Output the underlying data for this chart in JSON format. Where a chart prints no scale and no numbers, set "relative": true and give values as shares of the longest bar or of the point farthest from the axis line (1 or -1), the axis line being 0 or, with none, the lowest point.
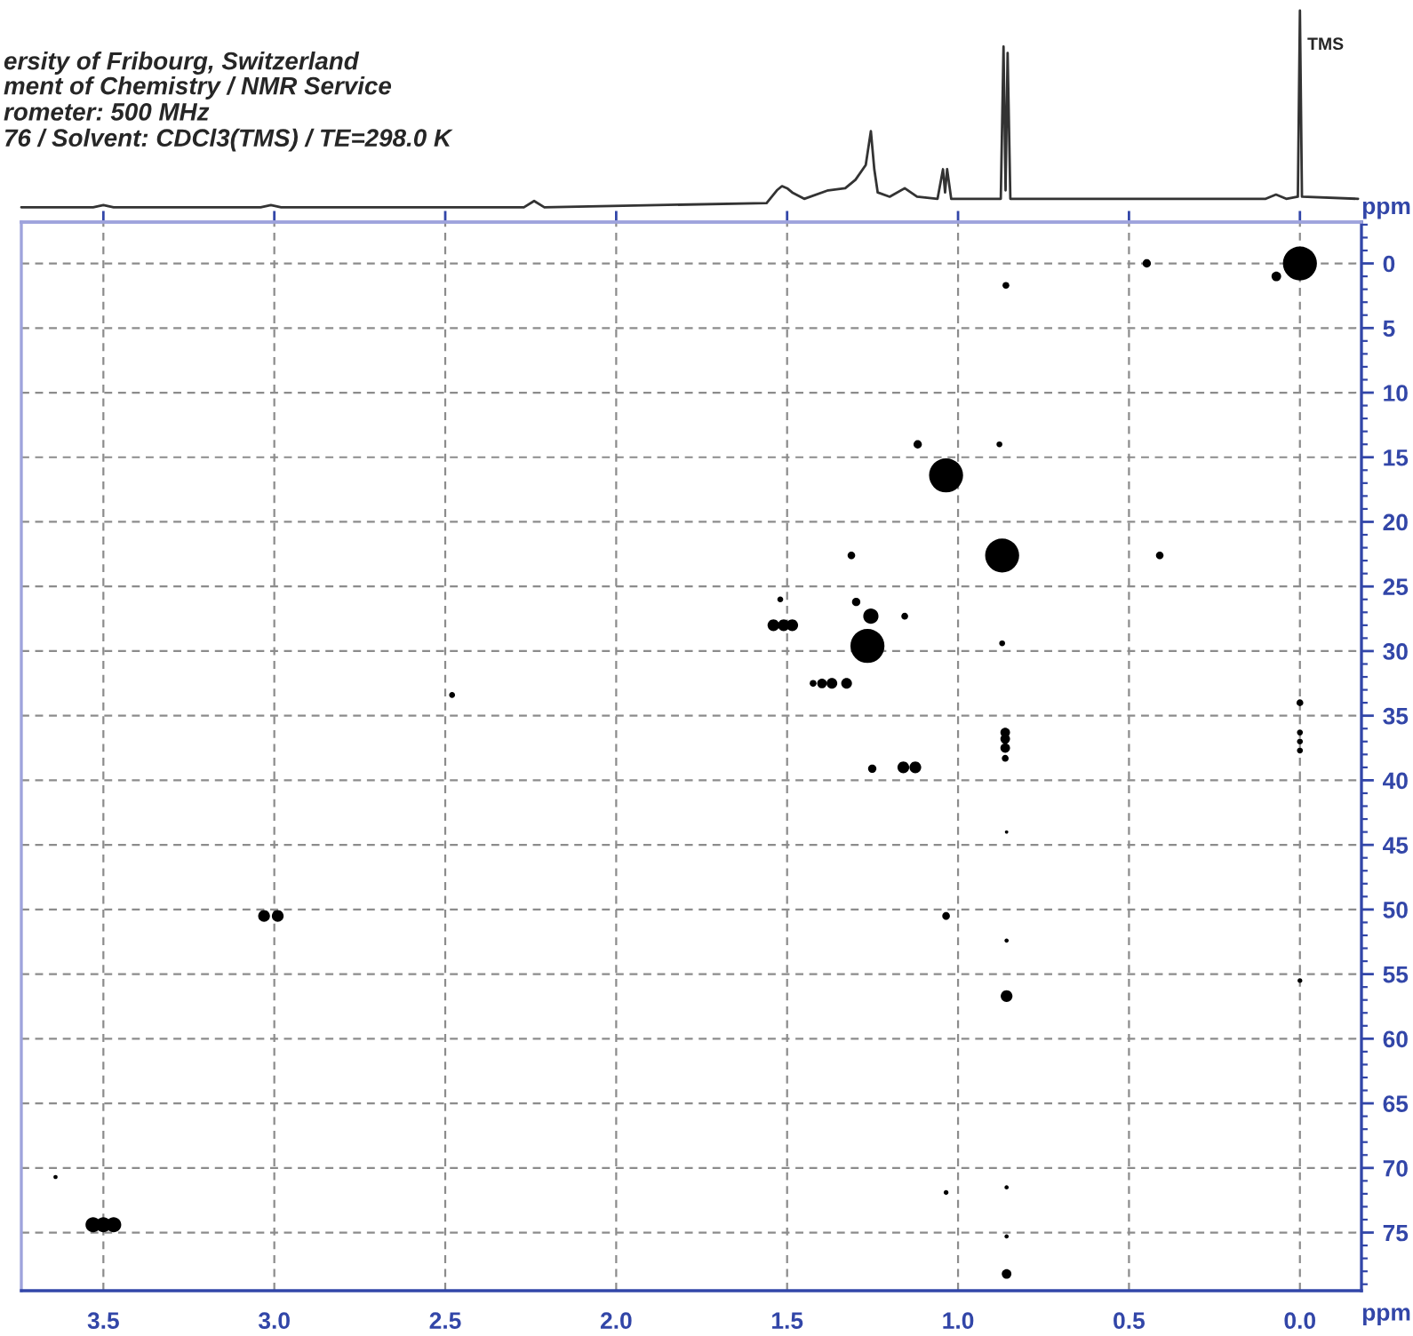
{
  "chart_data": [
    {
      "type": "line",
      "title": "ersity of Fribourg, Switzerland",
      "subtitle": "ment of Chemistry / NMR Service\nrometer: 500 MHz\n76 / Solvent: CDCl3(TMS) / TE=298.0 K",
      "relative": true,
      "xlim": [
        3.74,
        -0.18
      ],
      "xticks": [
        3.5,
        3,
        2.5,
        2,
        1.5,
        1,
        0.5,
        0
      ],
      "tick_labels": false,
      "color": "#333333",
      "x": [
        3.74,
        3.53,
        3.5,
        3.47,
        3.04,
        3.01,
        2.98,
        2.27,
        2.24,
        2.21,
        1.56,
        1.53,
        1.515,
        1.5,
        1.485,
        1.45,
        1.38,
        1.33,
        1.3,
        1.27,
        1.255,
        1.245,
        1.235,
        1.2,
        1.156,
        1.12,
        1.06,
        1.044,
        1.038,
        1.032,
        1.02,
        0.875,
        0.867,
        0.861,
        0.855,
        0.847,
        0.8,
        0.1,
        0.07,
        0.04,
        0.006,
        0.0,
        -0.006,
        -0.17
      ],
      "values": [
        0.07,
        0.07,
        0.08,
        0.07,
        0.07,
        0.08,
        0.07,
        0.07,
        0.1,
        0.07,
        0.09,
        0.15,
        0.17,
        0.16,
        0.14,
        0.11,
        0.15,
        0.16,
        0.2,
        0.27,
        0.43,
        0.25,
        0.14,
        0.12,
        0.16,
        0.12,
        0.11,
        0.25,
        0.14,
        0.25,
        0.11,
        0.11,
        0.83,
        0.15,
        0.8,
        0.11,
        0.11,
        0.11,
        0.13,
        0.11,
        0.12,
        1,
        0.12,
        0.11
      ],
      "annotations": [
        {
          "text": "TMS",
          "x": 0,
          "y": 1
        }
      ]
    },
    {
      "type": "bubble",
      "xlabel": "ppm",
      "ylabel": "ppm",
      "xlim": [
        3.74,
        -0.18
      ],
      "ylim": [
        79.5,
        -3.2
      ],
      "xticks": [
        3.5,
        {
          "value": 3,
          "label": "3.0"
        },
        2.5,
        {
          "value": 2,
          "label": "2.0"
        },
        1.5,
        {
          "value": 1,
          "label": "1.0"
        },
        0.5,
        {
          "value": 0,
          "label": "0.0"
        }
      ],
      "yticks": [
        0,
        5,
        10,
        15,
        20,
        25,
        30,
        35,
        40,
        45,
        50,
        55,
        60,
        65,
        70,
        75
      ],
      "grid": true,
      "marker": "circle",
      "color": "#000000",
      "x": [
        0.0,
        0.069,
        0.448,
        0.86,
        1.118,
        0.879,
        1.035,
        1.312,
        0.871,
        0.41,
        1.52,
        1.54,
        1.51,
        1.485,
        1.298,
        1.255,
        1.156,
        1.265,
        0.871,
        1.424,
        1.398,
        1.369,
        1.326,
        0.862,
        0.862,
        0.862,
        0.862,
        1.251,
        1.16,
        1.125,
        0.0,
        0.0,
        0.0,
        0.0,
        2.48,
        0.858,
        3.03,
        2.99,
        1.035,
        0.858,
        0.858,
        0.0,
        3.64,
        3.53,
        3.5,
        3.47,
        1.035,
        0.858,
        0.858,
        0.858
      ],
      "values": [
        0,
        1.0,
        0,
        1.7,
        14.0,
        14.0,
        16.4,
        22.6,
        22.6,
        22.6,
        26.0,
        28.0,
        28.0,
        28.0,
        26.2,
        27.3,
        27.3,
        29.6,
        29.4,
        32.5,
        32.5,
        32.5,
        32.5,
        36.3,
        36.8,
        37.5,
        38.3,
        39.1,
        39.0,
        39.0,
        34.0,
        36.3,
        37.0,
        37.7,
        33.4,
        44.0,
        50.5,
        50.5,
        50.5,
        52.4,
        56.7,
        55.5,
        70.7,
        74.4,
        74.4,
        74.4,
        71.9,
        71.5,
        75.3,
        78.2
      ],
      "sizes": [
        1,
        0.08,
        0.06,
        0.04,
        0.06,
        0.03,
        1,
        0.05,
        1,
        0.05,
        0.03,
        0.12,
        0.12,
        0.12,
        0.06,
        0.2,
        0.04,
        1,
        0.03,
        0.04,
        0.08,
        0.1,
        0.1,
        0.08,
        0.08,
        0.08,
        0.04,
        0.06,
        0.12,
        0.12,
        0.04,
        0.03,
        0.03,
        0.03,
        0.03,
        0.01,
        0.12,
        0.12,
        0.05,
        0.015,
        0.12,
        0.02,
        0.015,
        0.2,
        0.2,
        0.2,
        0.02,
        0.015,
        0.015,
        0.08
      ]
    }
  ]
}
